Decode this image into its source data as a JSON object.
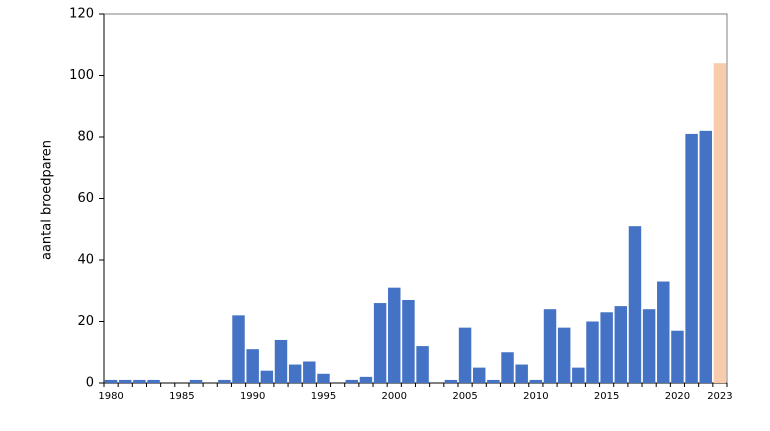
{
  "chart_data": {
    "type": "bar",
    "ylabel": "aantal broedparen",
    "xlabel": "",
    "title": "",
    "ylim": [
      0,
      120
    ],
    "yticks": [
      0,
      20,
      40,
      60,
      80,
      100,
      120
    ],
    "categories": [
      1980,
      1981,
      1982,
      1983,
      1984,
      1985,
      1986,
      1987,
      1988,
      1989,
      1990,
      1991,
      1992,
      1993,
      1994,
      1995,
      1996,
      1997,
      1998,
      1999,
      2000,
      2001,
      2002,
      2003,
      2004,
      2005,
      2006,
      2007,
      2008,
      2009,
      2010,
      2011,
      2012,
      2013,
      2014,
      2015,
      2016,
      2017,
      2018,
      2019,
      2020,
      2021,
      2022,
      2023
    ],
    "values": [
      1,
      1,
      1,
      1,
      0,
      0,
      1,
      0,
      1,
      22,
      11,
      4,
      14,
      6,
      7,
      3,
      0,
      1,
      2,
      26,
      31,
      27,
      12,
      0,
      1,
      18,
      5,
      1,
      10,
      6,
      1,
      24,
      18,
      5,
      20,
      23,
      25,
      51,
      24,
      33,
      17,
      81,
      82,
      104
    ],
    "xtick_labels": [
      "1980",
      "1985",
      "1990",
      "1995",
      "2000",
      "2005",
      "2010",
      "2015",
      "2020",
      "2023"
    ],
    "highlight_category": 2023,
    "grid": false,
    "legend": "none",
    "colors": {
      "bar": "#4472c4",
      "highlight": "#f8cbad",
      "axis": "#000000"
    }
  }
}
